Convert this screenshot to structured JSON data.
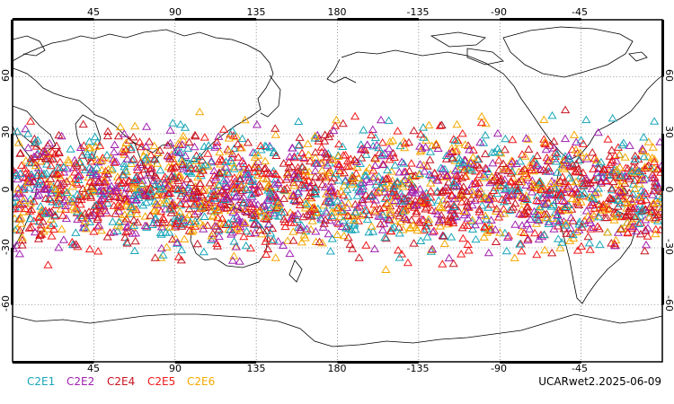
{
  "map": {
    "projection": "cylindrical-equidistant",
    "center_longitude": 180,
    "top_lon_labels": [
      "45",
      "90",
      "135",
      "180",
      "-135",
      "-90",
      "-45"
    ],
    "bottom_lon_labels": [
      "45",
      "90",
      "135",
      "180",
      "-135",
      "-90",
      "-45"
    ],
    "lat_labels": [
      "60",
      "30",
      "0",
      "-30",
      "-60"
    ],
    "gridlines": "dotted",
    "marker": "triangle",
    "marker_lat_band": [
      -45,
      45
    ]
  },
  "legend": [
    {
      "name": "C2E1",
      "color": "#17a6b8"
    },
    {
      "name": "C2E2",
      "color": "#a020b0"
    },
    {
      "name": "C2E4",
      "color": "#c81420"
    },
    {
      "name": "C2E5",
      "color": "#f01818"
    },
    {
      "name": "C2E6",
      "color": "#f5a800"
    }
  ],
  "footer": {
    "product": "UCARwet2.2025-06-09"
  }
}
